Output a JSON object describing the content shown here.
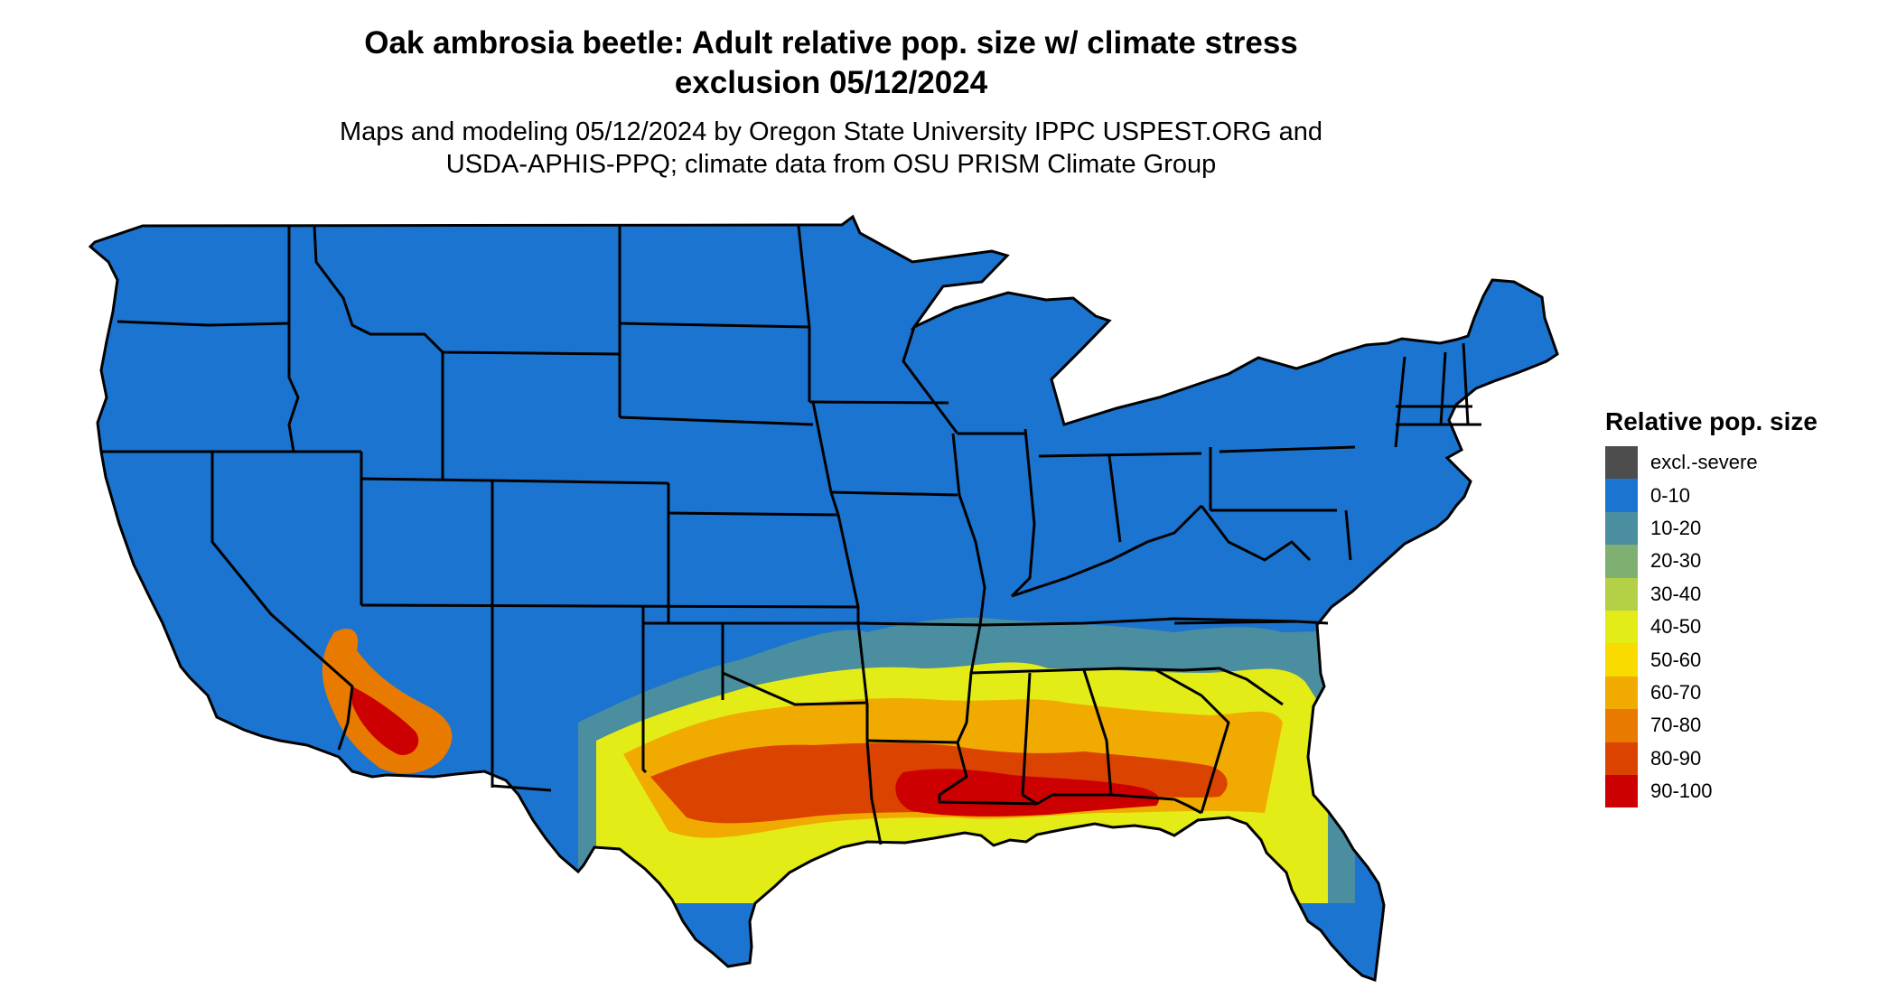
{
  "title_line1": "Oak ambrosia beetle: Adult relative pop. size w/ climate stress",
  "title_line2": "exclusion 05/12/2024",
  "subtitle_line1": "Maps and modeling 05/12/2024 by Oregon State University IPPC USPEST.ORG and",
  "subtitle_line2": "USDA-APHIS-PPQ; climate data from OSU PRISM Climate Group",
  "legend": {
    "title": "Relative pop. size",
    "items": [
      {
        "label": "excl.-severe",
        "color": "#4d4d4d"
      },
      {
        "label": "0-10",
        "color": "#1b74d0"
      },
      {
        "label": "10-20",
        "color": "#4a8ea0"
      },
      {
        "label": "20-30",
        "color": "#7fb071"
      },
      {
        "label": "30-40",
        "color": "#b3d046"
      },
      {
        "label": "40-50",
        "color": "#e3ec16"
      },
      {
        "label": "50-60",
        "color": "#f9db00"
      },
      {
        "label": "60-70",
        "color": "#f0aa00"
      },
      {
        "label": "70-80",
        "color": "#e87a00"
      },
      {
        "label": "80-90",
        "color": "#db4300"
      },
      {
        "label": "90-100",
        "color": "#cc0000"
      }
    ]
  },
  "map": {
    "region": "contiguous-united-states",
    "boundary_color": "#000000"
  }
}
